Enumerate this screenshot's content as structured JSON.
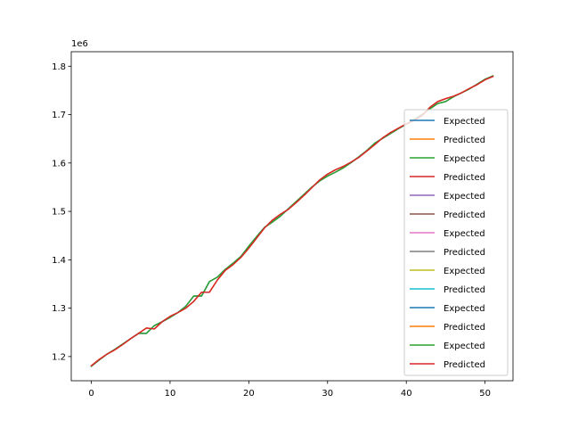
{
  "chart_data": {
    "type": "line",
    "title": "",
    "xlabel": "",
    "ylabel": "",
    "y_offset_label": "1e6",
    "xlim": [
      -2.55,
      53.55
    ],
    "ylim": [
      1150000,
      1830000
    ],
    "x_ticks": [
      0,
      10,
      20,
      30,
      40,
      50
    ],
    "y_ticks": [
      1200000,
      1300000,
      1400000,
      1500000,
      1600000,
      1700000,
      1800000
    ],
    "y_tick_labels": [
      "1.2",
      "1.3",
      "1.4",
      "1.5",
      "1.6",
      "1.7",
      "1.8"
    ],
    "legend_position": "lower-right",
    "x": [
      0,
      1,
      2,
      3,
      4,
      5,
      6,
      7,
      8,
      9,
      10,
      11,
      12,
      13,
      14,
      15,
      16,
      17,
      18,
      19,
      20,
      21,
      22,
      23,
      24,
      25,
      26,
      27,
      28,
      29,
      30,
      31,
      32,
      33,
      34,
      35,
      36,
      37,
      38,
      39,
      40,
      41,
      42,
      43,
      44,
      45,
      46,
      47,
      48,
      49,
      50,
      51
    ],
    "series": [
      {
        "name": "Expected",
        "color": "#1f77b4",
        "values": [
          1180000,
          1193000,
          1205000,
          1215000,
          1226000,
          1237000,
          1248000,
          1248000,
          1264000,
          1272000,
          1281000,
          1291000,
          1304000,
          1325000,
          1325000,
          1355000,
          1364000,
          1380000,
          1393000,
          1407000,
          1428000,
          1448000,
          1467000,
          1478000,
          1490000,
          1505000,
          1520000,
          1535000,
          1550000,
          1563000,
          1573000,
          1581000,
          1590000,
          1601000,
          1613000,
          1626000,
          1641000,
          1651000,
          1661000,
          1671000,
          1680000,
          1690000,
          1700000,
          1712000,
          1723000,
          1727000,
          1737000,
          1745000,
          1753000,
          1763000,
          1773000,
          1780000
        ]
      },
      {
        "name": "Predicted",
        "color": "#ff7f0e",
        "values": [
          1181000,
          1194000,
          1205000,
          1214000,
          1225000,
          1237000,
          1248000,
          1259000,
          1257000,
          1272000,
          1283000,
          1291000,
          1300000,
          1314000,
          1333000,
          1333000,
          1358000,
          1378000,
          1390000,
          1405000,
          1424000,
          1445000,
          1466000,
          1482000,
          1494000,
          1504000,
          1518000,
          1533000,
          1549000,
          1565000,
          1577000,
          1586000,
          1593000,
          1602000,
          1612000,
          1625000,
          1638000,
          1652000,
          1663000,
          1672000,
          1681000,
          1688000,
          1698000,
          1715000,
          1727000,
          1733000,
          1738000,
          1745000,
          1754000,
          1762000,
          1772000,
          1779000
        ]
      },
      {
        "name": "Expected",
        "color": "#2ca02c",
        "values": [
          1180000,
          1193000,
          1205000,
          1215000,
          1226000,
          1237000,
          1248000,
          1248000,
          1264000,
          1272000,
          1281000,
          1291000,
          1304000,
          1325000,
          1325000,
          1355000,
          1364000,
          1380000,
          1393000,
          1407000,
          1428000,
          1448000,
          1467000,
          1478000,
          1490000,
          1505000,
          1520000,
          1535000,
          1550000,
          1563000,
          1573000,
          1581000,
          1590000,
          1601000,
          1613000,
          1626000,
          1641000,
          1651000,
          1661000,
          1671000,
          1680000,
          1690000,
          1700000,
          1712000,
          1723000,
          1727000,
          1737000,
          1745000,
          1753000,
          1763000,
          1773000,
          1780000
        ]
      },
      {
        "name": "Predicted",
        "color": "#d62728",
        "values": [
          1181000,
          1194000,
          1205000,
          1214000,
          1225000,
          1237000,
          1248000,
          1259000,
          1257000,
          1272000,
          1283000,
          1291000,
          1300000,
          1314000,
          1333000,
          1333000,
          1358000,
          1378000,
          1390000,
          1405000,
          1424000,
          1445000,
          1466000,
          1482000,
          1494000,
          1504000,
          1518000,
          1533000,
          1549000,
          1565000,
          1577000,
          1586000,
          1593000,
          1602000,
          1612000,
          1625000,
          1638000,
          1652000,
          1663000,
          1672000,
          1681000,
          1688000,
          1698000,
          1715000,
          1727000,
          1733000,
          1738000,
          1745000,
          1754000,
          1762000,
          1772000,
          1779000
        ]
      }
    ],
    "legend": [
      {
        "label": "Expected",
        "color": "#1f77b4"
      },
      {
        "label": "Predicted",
        "color": "#ff7f0e"
      },
      {
        "label": "Expected",
        "color": "#2ca02c"
      },
      {
        "label": "Predicted",
        "color": "#d62728"
      },
      {
        "label": "Expected",
        "color": "#9467bd"
      },
      {
        "label": "Predicted",
        "color": "#8c564b"
      },
      {
        "label": "Expected",
        "color": "#e377c2"
      },
      {
        "label": "Predicted",
        "color": "#7f7f7f"
      },
      {
        "label": "Expected",
        "color": "#bcbd22"
      },
      {
        "label": "Predicted",
        "color": "#17becf"
      },
      {
        "label": "Expected",
        "color": "#1f77b4"
      },
      {
        "label": "Predicted",
        "color": "#ff7f0e"
      },
      {
        "label": "Expected",
        "color": "#2ca02c"
      },
      {
        "label": "Predicted",
        "color": "#d62728"
      }
    ]
  }
}
